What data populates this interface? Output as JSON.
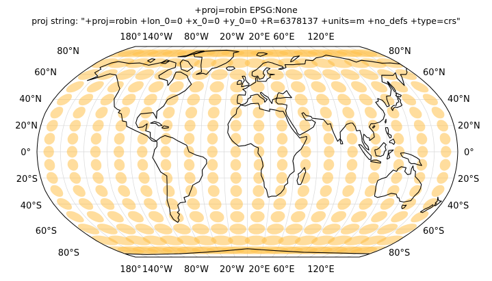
{
  "title": {
    "line1": "+proj=robin EPSG:None",
    "line2": "proj string: \"+proj=robin +lon_0=0 +x_0=0 +y_0=0 +R=6378137 +units=m +no_defs +type=crs\""
  },
  "map": {
    "projection": "Robinson",
    "central_longitude": 0,
    "gridlines": true,
    "gridline_color": "#d9d9d9",
    "coastline_color": "#000000",
    "ellipse_color": "#ffc14d",
    "ellipse_opacity": 0.55,
    "ellipse_grid_longitudes": [
      -170,
      -150,
      -130,
      -110,
      -90,
      -70,
      -50,
      -30,
      -10,
      10,
      30,
      50,
      70,
      90,
      110,
      130,
      150,
      170
    ],
    "ellipse_grid_latitudes": [
      -80,
      -70,
      -60,
      -50,
      -40,
      -30,
      -20,
      -10,
      0,
      10,
      20,
      30,
      40,
      50,
      60,
      70,
      80
    ]
  },
  "axes": {
    "lon_ticks_top": [
      "180°",
      "140°W",
      "80°W",
      "20°W",
      "20°E",
      "60°E",
      "120°E"
    ],
    "lon_ticks_bottom": [
      "180°",
      "140°W",
      "80°W",
      "20°W",
      "20°E",
      "60°E",
      "120°E"
    ],
    "lat_ticks_left": [
      "80°N",
      "60°N",
      "40°N",
      "20°N",
      "0°",
      "20°S",
      "40°S",
      "60°S",
      "80°S"
    ],
    "lat_ticks_right": [
      "80°N",
      "60°N",
      "40°N",
      "20°N",
      "0°",
      "20°S",
      "40°S",
      "60°S",
      "80°S"
    ]
  }
}
